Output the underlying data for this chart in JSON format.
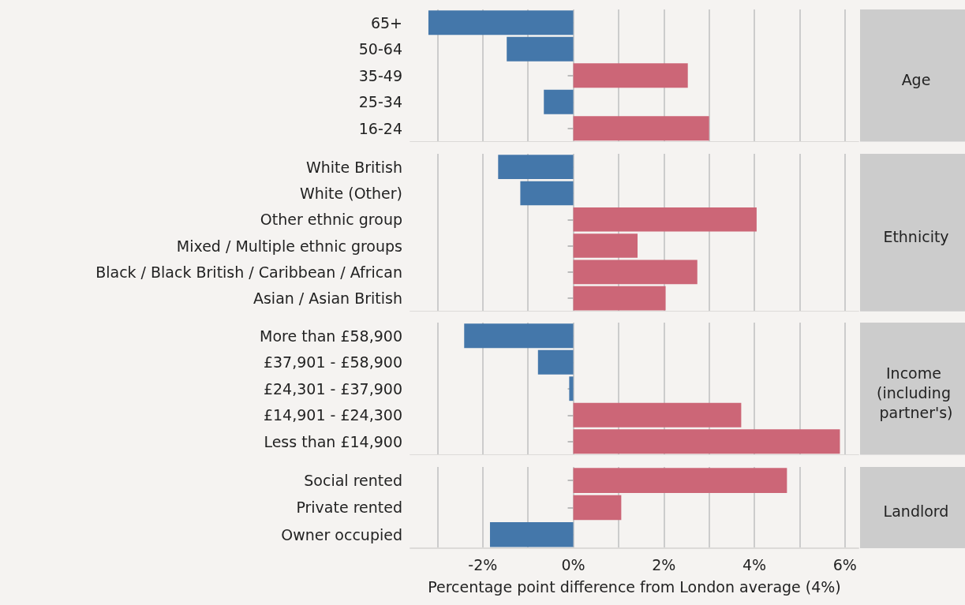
{
  "chart_data": [
    {
      "type": "bar",
      "orientation": "horizontal",
      "y2label": "Age",
      "categories": [
        "65+",
        "50-64",
        "35-49",
        "25-34",
        "16-24"
      ],
      "values": [
        -3.2,
        -1.47,
        2.53,
        -0.65,
        3.0
      ],
      "colors": [
        "#4477aa",
        "#4477aa",
        "#cc6677",
        "#4477aa",
        "#cc6677"
      ],
      "xlim": [
        -3.6,
        6.3
      ],
      "xticks": [
        -3,
        -2,
        -1,
        0,
        1,
        2,
        3,
        4,
        5,
        6
      ],
      "grid": "x",
      "tick_labels": "y"
    },
    {
      "type": "bar",
      "orientation": "horizontal",
      "y2label": "Ethnicity",
      "categories": [
        "White British",
        "White (Other)",
        "Other ethnic group",
        "Mixed / Multiple ethnic groups",
        "Black / Black British / Caribbean / African",
        "Asian / Asian British"
      ],
      "values": [
        -1.66,
        -1.17,
        4.05,
        1.42,
        2.74,
        2.04
      ],
      "colors": [
        "#4477aa",
        "#4477aa",
        "#cc6677",
        "#cc6677",
        "#cc6677",
        "#cc6677"
      ],
      "xlim": [
        -3.6,
        6.3
      ],
      "xticks": [
        -3,
        -2,
        -1,
        0,
        1,
        2,
        3,
        4,
        5,
        6
      ],
      "grid": "x",
      "tick_labels": "y"
    },
    {
      "type": "bar",
      "orientation": "horizontal",
      "y2label": "Income (including partner's)",
      "categories": [
        "More than £58,900",
        "£37,901 - £58,900",
        "£24,301 - £37,900",
        "£14,901 - £24,300",
        "Less than £14,900"
      ],
      "values": [
        -2.41,
        -0.78,
        -0.09,
        3.71,
        5.89
      ],
      "colors": [
        "#4477aa",
        "#4477aa",
        "#4477aa",
        "#cc6677",
        "#cc6677"
      ],
      "xlim": [
        -3.6,
        6.3
      ],
      "xticks": [
        -3,
        -2,
        -1,
        0,
        1,
        2,
        3,
        4,
        5,
        6
      ],
      "grid": "x",
      "tick_labels": "y"
    },
    {
      "type": "bar",
      "orientation": "horizontal",
      "y2label": "Landlord",
      "xlabel": "Percentage point difference from London average (4%)",
      "categories": [
        "Social rented",
        "Private rented",
        "Owner occupied"
      ],
      "values": [
        4.72,
        1.06,
        -1.84
      ],
      "colors": [
        "#cc6677",
        "#cc6677",
        "#4477aa"
      ],
      "xlim": [
        -3.6,
        6.3
      ],
      "xticks": [
        {
          "value": -3,
          "label": null
        },
        {
          "value": -2,
          "label": "-2%"
        },
        {
          "value": -1,
          "label": null
        },
        {
          "value": 0,
          "label": "0%"
        },
        {
          "value": 1,
          "label": null
        },
        {
          "value": 2,
          "label": "2%"
        },
        {
          "value": 3,
          "label": null
        },
        {
          "value": 4,
          "label": "4%"
        },
        {
          "value": 5,
          "label": null
        },
        {
          "value": 6,
          "label": "6%"
        }
      ],
      "grid": "x"
    }
  ]
}
